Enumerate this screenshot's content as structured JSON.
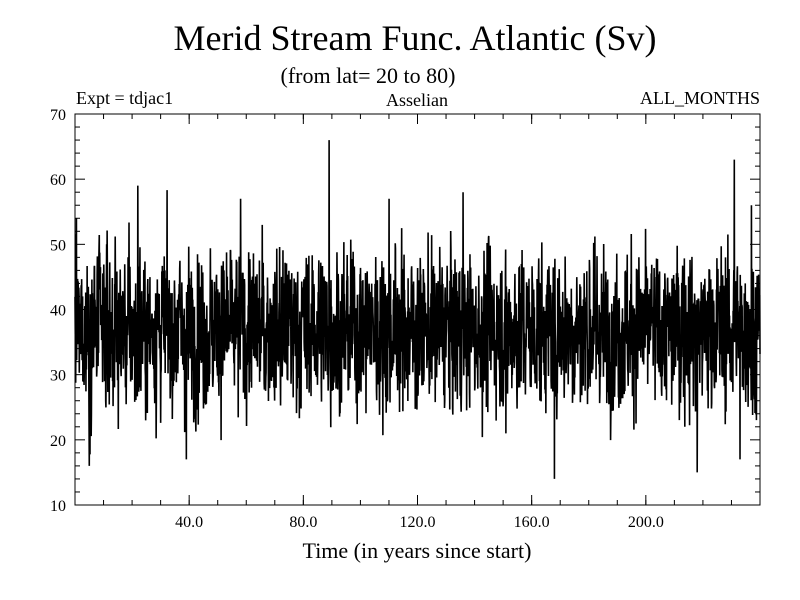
{
  "chart_data": {
    "type": "line",
    "title": "Merid Stream Func. Atlantic (Sv)",
    "subtitle": "(from lat= 20 to 80)",
    "header_left": "Expt = tdjac1",
    "header_center": "Asselian",
    "header_right": "ALL_MONTHS",
    "xlabel": "Time (in years since start)",
    "ylabel": "",
    "xlim": [
      0,
      240
    ],
    "ylim": [
      10,
      70
    ],
    "xticks": [
      40,
      80,
      120,
      160,
      200
    ],
    "xtick_labels": [
      "40.0",
      "80.0",
      "120.0",
      "160.0",
      "200.0"
    ],
    "yticks": [
      10,
      20,
      30,
      40,
      50,
      60,
      70
    ],
    "ytick_labels": [
      "10",
      "20",
      "30",
      "40",
      "50",
      "60",
      "70"
    ],
    "grid": false,
    "series": [
      {
        "name": "Merid Stream Func. Atlantic",
        "sampling": "monthly",
        "n_points": 2880,
        "mean": 37,
        "typical_range": [
          28,
          47
        ],
        "extremes": [
          {
            "x": 0.5,
            "y": 54
          },
          {
            "x": 5,
            "y": 16
          },
          {
            "x": 22,
            "y": 59
          },
          {
            "x": 39,
            "y": 17
          },
          {
            "x": 58,
            "y": 57
          },
          {
            "x": 89,
            "y": 66
          },
          {
            "x": 110,
            "y": 57
          },
          {
            "x": 136,
            "y": 58
          },
          {
            "x": 151,
            "y": 21
          },
          {
            "x": 168,
            "y": 14
          },
          {
            "x": 218,
            "y": 15
          },
          {
            "x": 231,
            "y": 63
          },
          {
            "x": 233,
            "y": 17
          },
          {
            "x": 237,
            "y": 56
          }
        ]
      }
    ]
  }
}
